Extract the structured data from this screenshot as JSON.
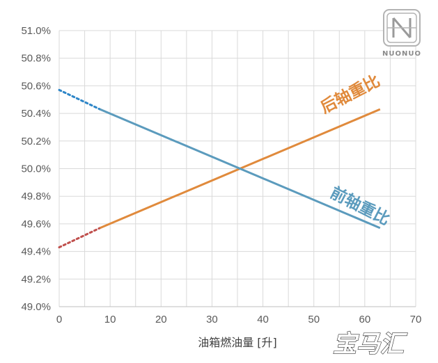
{
  "chart_data": {
    "type": "line",
    "xlabel": "油箱燃油量 [升]",
    "ylabel": "",
    "xlim": [
      0,
      70
    ],
    "ylim": [
      49.0,
      51.0
    ],
    "x_ticks": [
      0,
      10,
      20,
      30,
      40,
      50,
      60,
      70
    ],
    "y_ticks": [
      "49.0%",
      "49.2%",
      "49.4%",
      "49.6%",
      "49.8%",
      "50.0%",
      "50.2%",
      "50.4%",
      "50.6%",
      "50.8%",
      "51.0%"
    ],
    "grid": true,
    "series": [
      {
        "name": "后轴重比",
        "color": "#E08A3C",
        "extrapolated_color": "#C0504D",
        "x": [
          0,
          8,
          63
        ],
        "y": [
          49.43,
          49.57,
          50.43
        ],
        "solid_from_x": 8
      },
      {
        "name": "前轴重比",
        "color": "#5B9BBD",
        "extrapolated_color": "#2E86C8",
        "x": [
          0,
          8,
          63
        ],
        "y": [
          50.57,
          50.43,
          49.57
        ],
        "solid_from_x": 8
      }
    ]
  },
  "logo": {
    "text": "NUONUO",
    "icon": "nuonuo-logo-icon"
  },
  "watermark": {
    "text": "宝马汇"
  }
}
